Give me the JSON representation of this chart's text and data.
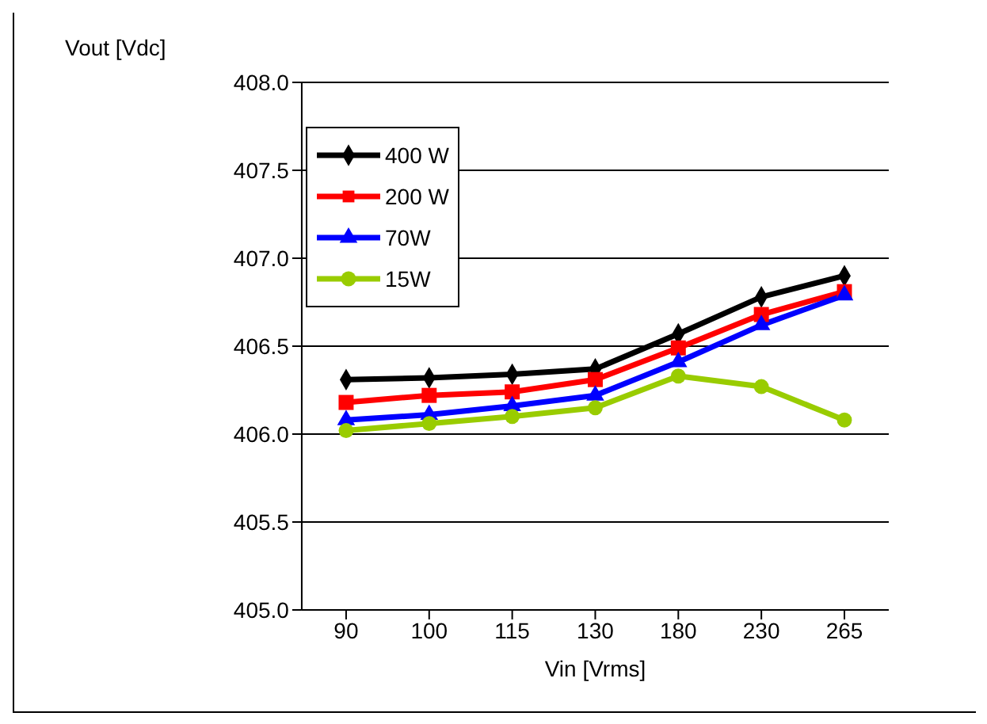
{
  "chart_data": {
    "type": "line",
    "ylabel": "Vout [Vdc]",
    "xlabel": "Vin [Vrms]",
    "categories": [
      "90",
      "100",
      "115",
      "130",
      "180",
      "230",
      "265"
    ],
    "series": [
      {
        "name": "400 W",
        "color": "#000000",
        "marker": "diamond",
        "values": [
          406.31,
          406.32,
          406.34,
          406.37,
          406.57,
          406.78,
          406.9
        ]
      },
      {
        "name": "200 W",
        "color": "#ff0000",
        "marker": "square",
        "values": [
          406.18,
          406.22,
          406.24,
          406.31,
          406.49,
          406.68,
          406.81
        ]
      },
      {
        "name": "70W",
        "color": "#0000ff",
        "marker": "triangle",
        "values": [
          406.08,
          406.11,
          406.16,
          406.22,
          406.41,
          406.62,
          406.79
        ]
      },
      {
        "name": "15W",
        "color": "#99cc00",
        "marker": "circle",
        "values": [
          406.02,
          406.06,
          406.1,
          406.15,
          406.33,
          406.27,
          406.08
        ]
      }
    ],
    "ylim": [
      405,
      408
    ],
    "yticks": [
      {
        "value": 405,
        "label": "405.0"
      },
      {
        "value": 405.5,
        "label": "405.5"
      },
      {
        "value": 406,
        "label": "406.0"
      },
      {
        "value": 406.5,
        "label": "406.5"
      },
      {
        "value": 407,
        "label": "407.0"
      },
      {
        "value": 407.5,
        "label": "407.5"
      },
      {
        "value": 408,
        "label": "408.0"
      }
    ],
    "grid": "y",
    "legend": "top left",
    "line_style": "solid"
  }
}
